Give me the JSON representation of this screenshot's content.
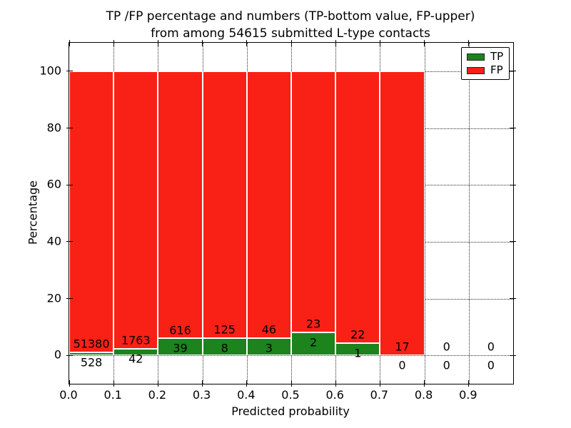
{
  "chart_data": {
    "type": "bar",
    "stacked": true,
    "title_lines": [
      "TP /FP percentage and numbers (TP-bottom value, FP-upper)",
      "from among 54615 submitted L-type contacts"
    ],
    "xlabel": "Predicted probability",
    "ylabel": "Percentage",
    "xlim": [
      0.0,
      1.0
    ],
    "ylim": [
      -10,
      110
    ],
    "xtick_values": [
      0.0,
      0.1,
      0.2,
      0.3,
      0.4,
      0.5,
      0.6,
      0.7,
      0.8,
      0.9
    ],
    "xtick_labels": [
      "0.0",
      "0.1",
      "0.2",
      "0.3",
      "0.4",
      "0.5",
      "0.6",
      "0.7",
      "0.8",
      "0.9"
    ],
    "ytick_values": [
      0,
      20,
      40,
      60,
      80,
      100
    ],
    "ytick_labels": [
      "0",
      "20",
      "40",
      "60",
      "80",
      "100"
    ],
    "grid": {
      "on": true,
      "style": "dotted",
      "color": "#2b2b2b"
    },
    "bin_starts": [
      0.0,
      0.1,
      0.2,
      0.3,
      0.4,
      0.5,
      0.6,
      0.7,
      0.8,
      0.9
    ],
    "bin_width": 0.1,
    "series": [
      {
        "name": "TP",
        "color": "#1d831d",
        "counts": [
          528,
          42,
          39,
          8,
          3,
          2,
          1,
          0,
          0,
          0
        ],
        "pct": [
          1.02,
          2.33,
          5.95,
          6.02,
          6.12,
          8.0,
          4.35,
          0.0,
          0.0,
          0.0
        ]
      },
      {
        "name": "FP",
        "color": "#f92016",
        "counts": [
          51380,
          1763,
          616,
          125,
          46,
          23,
          22,
          17,
          0,
          0
        ],
        "pct": [
          98.98,
          97.67,
          94.05,
          93.98,
          93.88,
          92.0,
          95.65,
          100.0,
          0.0,
          0.0
        ]
      }
    ],
    "total_submitted": 54615,
    "legend": {
      "position": "upper right",
      "entries": [
        "TP",
        "FP"
      ]
    }
  },
  "colors": {
    "background": "#ffffff",
    "axis": "#000000",
    "text": "#000000",
    "tp_green": "#1d831d",
    "fp_red": "#f92016",
    "grid": "#2b2b2b"
  }
}
